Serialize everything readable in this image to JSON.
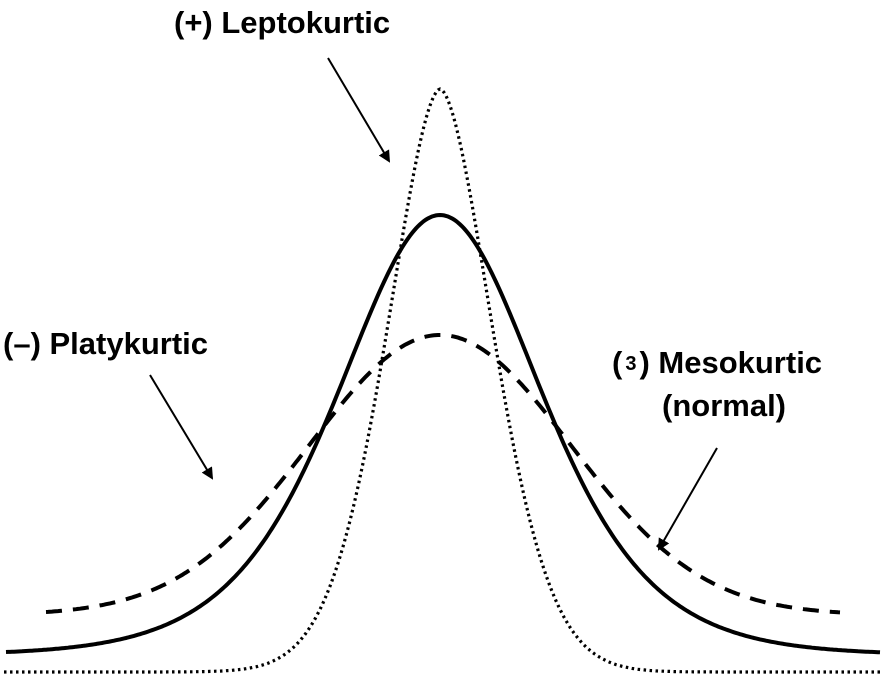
{
  "labels": {
    "leptokurtic": "(+) Leptokurtic",
    "platykurtic": "(–) Platykurtic",
    "mesokurtic_open": "(",
    "mesokurtic_num": "3",
    "mesokurtic_close": ") Mesokurtic",
    "mesokurtic_sub": "(normal)"
  },
  "curves": [
    {
      "id": "leptokurtic",
      "style": "dotted",
      "color": "#000000"
    },
    {
      "id": "mesokurtic",
      "style": "solid",
      "color": "#000000"
    },
    {
      "id": "platykurtic",
      "style": "dashed",
      "color": "#000000"
    }
  ]
}
